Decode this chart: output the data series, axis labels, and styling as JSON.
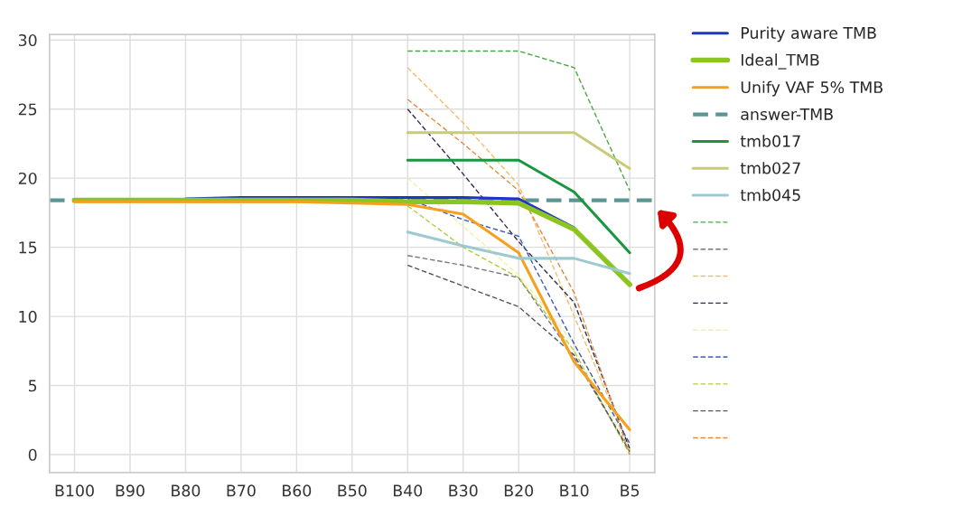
{
  "chart_data": {
    "type": "line",
    "categories": [
      "B100",
      "B90",
      "B80",
      "B70",
      "B60",
      "B50",
      "B40",
      "B30",
      "B20",
      "B10",
      "B5"
    ],
    "ylim": [
      -1.3,
      30.4
    ],
    "yticks": [
      0,
      5,
      10,
      15,
      20,
      25,
      30
    ],
    "grid": true,
    "legend": "right",
    "marker": "none",
    "series": [
      {
        "name": "Purity aware TMB",
        "color": "#1f35c8",
        "line_style": "solid",
        "values": [
          null,
          null,
          18.5,
          18.6,
          18.6,
          18.6,
          18.6,
          18.6,
          18.5,
          16.4,
          null
        ]
      },
      {
        "name": "Ideal_TMB",
        "color": "#8cc422",
        "line_style": "solid",
        "values": [
          18.4,
          18.4,
          18.4,
          18.4,
          18.4,
          18.4,
          18.3,
          18.3,
          18.2,
          16.3,
          12.3
        ]
      },
      {
        "name": "Unify VAF 5% TMB",
        "color": "#f5a020",
        "line_style": "solid",
        "values": [
          18.3,
          18.3,
          18.3,
          18.3,
          18.3,
          18.2,
          18.1,
          17.4,
          14.6,
          6.7,
          1.8
        ]
      },
      {
        "name": "tmb017",
        "color": "#1a9640",
        "line_style": "solid",
        "values": [
          null,
          null,
          null,
          null,
          null,
          null,
          21.3,
          21.3,
          21.3,
          19.0,
          14.6
        ]
      },
      {
        "name": "tmb027",
        "color": "#c8cc78",
        "line_style": "solid",
        "values": [
          null,
          null,
          null,
          null,
          null,
          null,
          23.3,
          23.3,
          23.3,
          23.3,
          20.7
        ]
      },
      {
        "name": "tmb045",
        "color": "#9ccad0",
        "line_style": "solid",
        "values": [
          null,
          null,
          null,
          null,
          null,
          null,
          16.1,
          15.1,
          14.2,
          14.2,
          13.1
        ]
      },
      {
        "color": "#4aa84a",
        "line_style": "dashed",
        "values": [
          null,
          null,
          null,
          null,
          null,
          null,
          29.2,
          29.2,
          29.2,
          28.0,
          19.1
        ]
      },
      {
        "color": "#77778a",
        "line_style": "dashed",
        "values": [
          null,
          null,
          null,
          null,
          null,
          null,
          14.4,
          13.7,
          12.8,
          7.0,
          0.3
        ]
      },
      {
        "color": "#f5bc6a",
        "line_style": "dashed",
        "values": [
          null,
          null,
          null,
          null,
          null,
          null,
          28.0,
          24.0,
          19.5,
          10.0,
          0.5
        ]
      },
      {
        "color": "#2e2e55",
        "line_style": "dashed",
        "values": [
          null,
          null,
          null,
          null,
          null,
          null,
          25.0,
          20.3,
          15.4,
          11.0,
          0.4
        ]
      },
      {
        "color": "#f0f0a8",
        "line_style": "dashed",
        "values": [
          null,
          null,
          null,
          null,
          null,
          null,
          20.0,
          16.5,
          13.0,
          8.0,
          0.3
        ]
      },
      {
        "color": "#3b5bb5",
        "line_style": "dashed",
        "values": [
          null,
          null,
          null,
          null,
          null,
          null,
          18.5,
          17.0,
          15.8,
          8.0,
          0.8
        ]
      },
      {
        "color": "#b5cc3a",
        "line_style": "dashed",
        "values": [
          null,
          null,
          null,
          null,
          null,
          null,
          18.0,
          15.0,
          12.8,
          7.5,
          0.0
        ]
      },
      {
        "color": "#555566",
        "line_style": "dashed",
        "values": [
          null,
          null,
          null,
          null,
          null,
          null,
          13.7,
          12.2,
          10.7,
          7.2,
          0.2
        ]
      },
      {
        "color": "#e08a40",
        "line_style": "dashed",
        "values": [
          null,
          null,
          null,
          null,
          null,
          null,
          25.7,
          22.5,
          19.1,
          11.7,
          0.0
        ]
      }
    ],
    "ref_lines": [
      {
        "axis": "y",
        "value": 18.4,
        "label": "answer-TMB",
        "color": "#5b9693",
        "line_style": "dashed"
      }
    ]
  }
}
